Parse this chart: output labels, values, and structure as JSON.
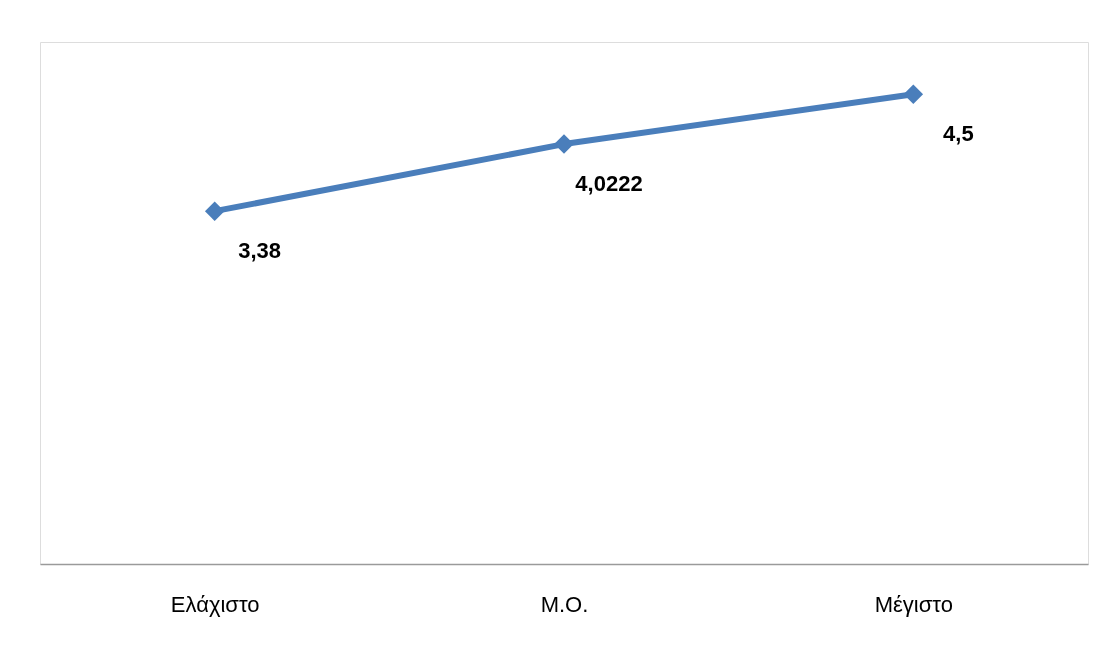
{
  "chart_data": {
    "type": "line",
    "categories": [
      "Ελάχιστο",
      "Μ.Ο.",
      "Μέγιστο"
    ],
    "series": [
      {
        "color": "#4a7ebb",
        "values": [
          3.38,
          4.0222,
          4.5
        ],
        "value_labels": [
          "3,38",
          "4,0222",
          "4,5"
        ]
      }
    ],
    "ylim": [
      0,
      5
    ],
    "tick_labels": "x",
    "grid": false,
    "marker": "diamond",
    "line_style": "solid"
  }
}
